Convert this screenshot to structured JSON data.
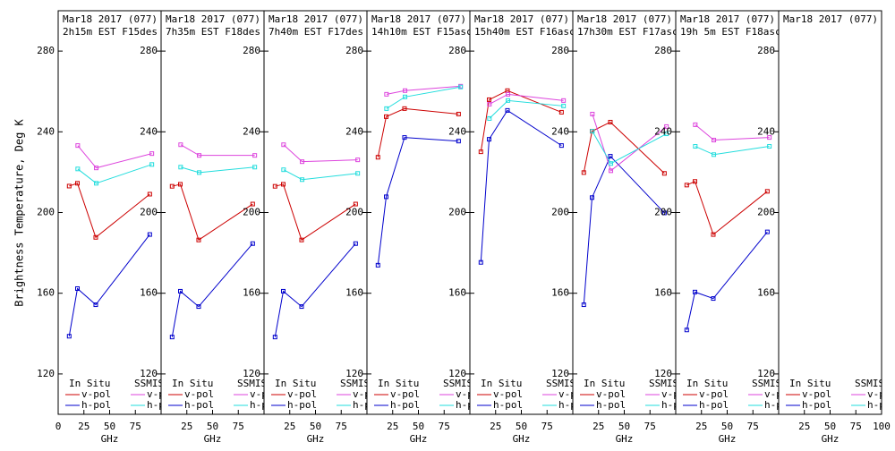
{
  "chart_data": {
    "type": "multi-line",
    "ylabel": "Brightness Temperature, Deg K",
    "panels": [
      {
        "title": [
          "Mar18 2017 (077)",
          "2h15m EST F15des"
        ],
        "xlabel": "GHz",
        "xlim": [
          0,
          100
        ],
        "xticks": [
          0,
          25,
          50,
          75
        ],
        "ylim": [
          100,
          300
        ],
        "yticks": [
          120,
          160,
          200,
          240,
          280
        ],
        "legend_titles": [
          "In Situ",
          "SSMIS"
        ],
        "series": [
          {
            "name": "v-pol",
            "group": 0,
            "color": "#cc0000",
            "x": [
              10.7,
              18.7,
              36.5,
              89
            ],
            "values": [
              213.1,
              214.5,
              187.7,
              209.1
            ]
          },
          {
            "name": "h-pol",
            "group": 0,
            "color": "#0000cc",
            "x": [
              10.7,
              18.7,
              36.5,
              89
            ],
            "values": [
              138.7,
              162.3,
              154.3,
              189.1
            ]
          },
          {
            "name": "v-pol",
            "group": 1,
            "color": "#dd44dd",
            "x": [
              19,
              37,
              91
            ],
            "values": [
              233.2,
              222.1,
              229.2
            ]
          },
          {
            "name": "h-pol",
            "group": 1,
            "color": "#22dddd",
            "x": [
              19,
              37,
              91
            ],
            "values": [
              221.6,
              214.5,
              223.8
            ]
          }
        ]
      },
      {
        "title": [
          "Mar18 2017 (077)",
          "7h35m EST F18des"
        ],
        "xlabel": "GHz",
        "xlim": [
          0,
          100
        ],
        "xticks": [
          25,
          50,
          75
        ],
        "ylim": [
          100,
          300
        ],
        "yticks": [
          120,
          160,
          200,
          240,
          280
        ],
        "legend_titles": [
          "In Situ",
          "SSMIS"
        ],
        "series": [
          {
            "name": "v-pol",
            "group": 0,
            "color": "#cc0000",
            "x": [
              10.7,
              18.7,
              36.5,
              89
            ],
            "values": [
              213,
              214,
              186.4,
              204.2
            ]
          },
          {
            "name": "h-pol",
            "group": 0,
            "color": "#0000cc",
            "x": [
              10.7,
              18.7,
              36.5,
              89
            ],
            "values": [
              138.3,
              161,
              153.4,
              184.6
            ]
          },
          {
            "name": "v-pol",
            "group": 1,
            "color": "#dd44dd",
            "x": [
              19,
              37,
              91
            ],
            "values": [
              233.6,
              228.3,
              228.3
            ]
          },
          {
            "name": "h-pol",
            "group": 1,
            "color": "#22dddd",
            "x": [
              19,
              37,
              91
            ],
            "values": [
              222.5,
              219.8,
              222.5
            ]
          }
        ]
      },
      {
        "title": [
          "Mar18 2017 (077)",
          "7h40m EST F17des"
        ],
        "xlabel": "GHz",
        "xlim": [
          0,
          100
        ],
        "xticks": [
          25,
          50,
          75
        ],
        "ylim": [
          100,
          300
        ],
        "yticks": [
          120,
          160,
          200,
          240,
          280
        ],
        "legend_titles": [
          "In Situ",
          "SSMIS"
        ],
        "series": [
          {
            "name": "v-pol",
            "group": 0,
            "color": "#cc0000",
            "x": [
              10.7,
              18.7,
              36.5,
              89
            ],
            "values": [
              213,
              214,
              186.4,
              204.2
            ]
          },
          {
            "name": "h-pol",
            "group": 0,
            "color": "#0000cc",
            "x": [
              10.7,
              18.7,
              36.5,
              89
            ],
            "values": [
              138.3,
              161,
              153.4,
              184.6
            ]
          },
          {
            "name": "v-pol",
            "group": 1,
            "color": "#dd44dd",
            "x": [
              19,
              37,
              91
            ],
            "values": [
              233.6,
              225.2,
              226.1
            ]
          },
          {
            "name": "h-pol",
            "group": 1,
            "color": "#22dddd",
            "x": [
              19,
              37,
              91
            ],
            "values": [
              221.2,
              216.3,
              219.4
            ]
          }
        ]
      },
      {
        "title": [
          "Mar18 2017 (077)",
          "14h10m EST F15asc"
        ],
        "xlabel": "GHz",
        "xlim": [
          0,
          100
        ],
        "xticks": [
          25,
          50,
          75
        ],
        "ylim": [
          100,
          300
        ],
        "yticks": [
          120,
          160,
          200,
          240,
          280
        ],
        "legend_titles": [
          "In Situ",
          "SSMIS"
        ],
        "series": [
          {
            "name": "v-pol",
            "group": 0,
            "color": "#cc0000",
            "x": [
              10.7,
              18.7,
              36.5,
              89
            ],
            "values": [
              227.4,
              247.5,
              251.5,
              248.8
            ]
          },
          {
            "name": "h-pol",
            "group": 0,
            "color": "#0000cc",
            "x": [
              10.7,
              18.7,
              36.5,
              89
            ],
            "values": [
              173.9,
              207.8,
              237.2,
              235.4
            ]
          },
          {
            "name": "v-pol",
            "group": 1,
            "color": "#dd44dd",
            "x": [
              19,
              37,
              91
            ],
            "values": [
              258.6,
              260.4,
              262.6
            ]
          },
          {
            "name": "h-pol",
            "group": 1,
            "color": "#22dddd",
            "x": [
              19,
              37,
              91
            ],
            "values": [
              251.5,
              257.3,
              262.2
            ]
          }
        ]
      },
      {
        "title": [
          "Mar18 2017 (077)",
          "15h40m EST F16asc"
        ],
        "xlabel": "GHz",
        "xlim": [
          0,
          100
        ],
        "xticks": [
          25,
          50,
          75
        ],
        "ylim": [
          100,
          300
        ],
        "yticks": [
          120,
          160,
          200,
          240,
          280
        ],
        "legend_titles": [
          "In Situ",
          "SSMIS"
        ],
        "series": [
          {
            "name": "v-pol",
            "group": 0,
            "color": "#cc0000",
            "x": [
              10.7,
              18.7,
              36.5,
              89
            ],
            "values": [
              230.1,
              255.9,
              260.4,
              249.7
            ]
          },
          {
            "name": "h-pol",
            "group": 0,
            "color": "#0000cc",
            "x": [
              10.7,
              18.7,
              36.5,
              89
            ],
            "values": [
              175.3,
              236.3,
              250.6,
              233.2
            ]
          },
          {
            "name": "v-pol",
            "group": 1,
            "color": "#dd44dd",
            "x": [
              19,
              37,
              91
            ],
            "values": [
              253.7,
              258.6,
              255.5
            ]
          },
          {
            "name": "h-pol",
            "group": 1,
            "color": "#22dddd",
            "x": [
              19,
              37,
              91
            ],
            "values": [
              246.6,
              255.5,
              252.8
            ]
          }
        ]
      },
      {
        "title": [
          "Mar18 2017 (077)",
          "17h30m EST F17asc"
        ],
        "xlabel": "GHz",
        "xlim": [
          0,
          100
        ],
        "xticks": [
          25,
          50,
          75
        ],
        "ylim": [
          100,
          300
        ],
        "yticks": [
          120,
          160,
          200,
          240,
          280
        ],
        "legend_titles": [
          "In Situ",
          "SSMIS"
        ],
        "series": [
          {
            "name": "v-pol",
            "group": 0,
            "color": "#cc0000",
            "x": [
              10.7,
              18.7,
              36.5,
              89
            ],
            "values": [
              219.8,
              240.3,
              244.8,
              219.4
            ]
          },
          {
            "name": "h-pol",
            "group": 0,
            "color": "#0000cc",
            "x": [
              10.7,
              18.7,
              36.5,
              89
            ],
            "values": [
              154.3,
              207.4,
              227.9,
              199.8
            ]
          },
          {
            "name": "v-pol",
            "group": 1,
            "color": "#dd44dd",
            "x": [
              19,
              37,
              91
            ],
            "values": [
              248.8,
              220.7,
              242.6
            ]
          },
          {
            "name": "h-pol",
            "group": 1,
            "color": "#22dddd",
            "x": [
              19,
              37,
              91
            ],
            "values": [
              240.3,
              224.3,
              239
            ]
          }
        ]
      },
      {
        "title": [
          "Mar18 2017 (077)",
          "19h 5m EST F18asc"
        ],
        "xlabel": "GHz",
        "xlim": [
          0,
          100
        ],
        "xticks": [
          25,
          50,
          75
        ],
        "ylim": [
          100,
          300
        ],
        "yticks": [
          120,
          160,
          200,
          240,
          280
        ],
        "legend_titles": [
          "In Situ",
          "SSMIS"
        ],
        "series": [
          {
            "name": "v-pol",
            "group": 0,
            "color": "#cc0000",
            "x": [
              10.7,
              18.7,
              36.5,
              89
            ],
            "values": [
              213.6,
              215.4,
              189.1,
              210.5
            ]
          },
          {
            "name": "h-pol",
            "group": 0,
            "color": "#0000cc",
            "x": [
              10.7,
              18.7,
              36.5,
              89
            ],
            "values": [
              141.8,
              160.6,
              157.4,
              190.4
            ]
          },
          {
            "name": "v-pol",
            "group": 1,
            "color": "#dd44dd",
            "x": [
              19,
              37,
              91
            ],
            "values": [
              243.5,
              235.9,
              237.2
            ]
          },
          {
            "name": "h-pol",
            "group": 1,
            "color": "#22dddd",
            "x": [
              19,
              37,
              91
            ],
            "values": [
              232.8,
              228.7,
              232.8
            ]
          }
        ]
      },
      {
        "title": [
          "Mar18 2017 (077)"
        ],
        "xlabel": "GHz",
        "xlim": [
          0,
          100
        ],
        "xticks": [
          25,
          50,
          75,
          100
        ],
        "ylim": [
          100,
          300
        ],
        "yticks": [],
        "legend_titles": [
          "In Situ",
          "SSMIS"
        ],
        "series": [
          {
            "name": "v-pol",
            "group": 0,
            "color": "#cc0000",
            "x": [],
            "values": []
          },
          {
            "name": "h-pol",
            "group": 0,
            "color": "#0000cc",
            "x": [],
            "values": []
          },
          {
            "name": "v-pol",
            "group": 1,
            "color": "#dd44dd",
            "x": [],
            "values": []
          },
          {
            "name": "h-pol",
            "group": 1,
            "color": "#22dddd",
            "x": [],
            "values": []
          }
        ]
      }
    ]
  }
}
